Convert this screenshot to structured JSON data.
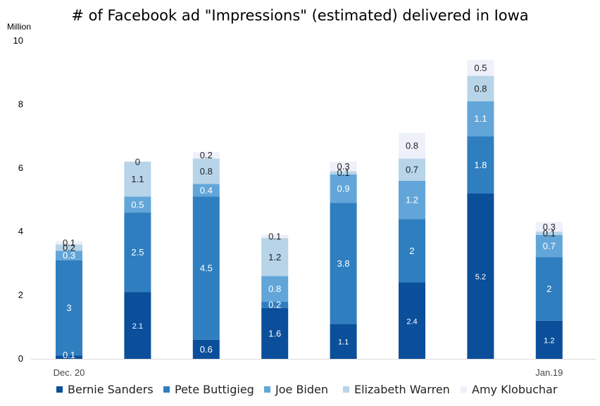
{
  "chart_data": {
    "type": "bar",
    "stacked": true,
    "title": "# of Facebook ad \"Impressions\" (estimated) delivered in Iowa",
    "unit_label": "Million",
    "ylim": [
      0,
      10
    ],
    "yticks": [
      0,
      2,
      4,
      6,
      8,
      10
    ],
    "grid": false,
    "legend_position": "bottom",
    "categories": [
      "Dec. 20",
      "",
      "",
      "",
      "",
      "",
      "",
      "Jan.19"
    ],
    "series": [
      {
        "name": "Bernie Sanders",
        "color": "#0b4f9b",
        "values": [
          0.1,
          2.1,
          0.6,
          1.6,
          1.1,
          2.4,
          5.2,
          1.2
        ]
      },
      {
        "name": "Pete Buttigieg",
        "color": "#2f7ebf",
        "values": [
          3,
          2.5,
          4.5,
          0.2,
          3.8,
          2,
          1.8,
          2
        ]
      },
      {
        "name": "Joe Biden",
        "color": "#62a6d9",
        "values": [
          0.3,
          0.5,
          0.4,
          0.8,
          0.9,
          1.2,
          1.1,
          0.7
        ]
      },
      {
        "name": "Elizabeth Warren",
        "color": "#b7d4e8",
        "values": [
          0.2,
          1.1,
          0.8,
          1.2,
          0.1,
          0.7,
          0.8,
          0.1
        ]
      },
      {
        "name": "Amy Klobuchar",
        "color": "#eef0fa",
        "values": [
          0.1,
          0,
          0.2,
          0.1,
          0.3,
          0.8,
          0.5,
          0.3
        ]
      }
    ]
  }
}
